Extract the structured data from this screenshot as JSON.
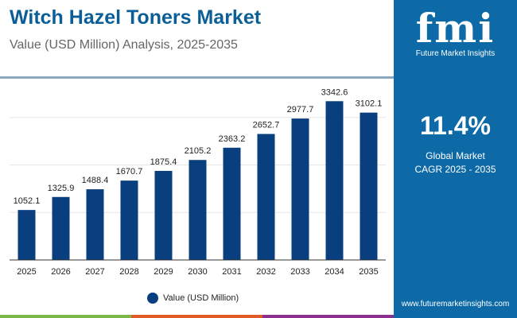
{
  "header": {
    "title": "Witch Hazel Toners Market",
    "subtitle": "Value (USD Million) Analysis, 2025-2035"
  },
  "panel": {
    "logo_text": "fmi",
    "logo_caption": "Future Market Insights",
    "cagr_value": "11.4%",
    "cagr_label_1": "Global Market",
    "cagr_label_2": "CAGR 2025 - 2035",
    "website": "www.futuremarketinsights.com"
  },
  "colors": {
    "bar": "#0a3f7f",
    "panel": "#0e6aa6",
    "title": "#0b5f96",
    "strip": [
      "#7ab648",
      "#e05a26",
      "#8b2f8e"
    ]
  },
  "chart_data": {
    "type": "bar",
    "title": "Witch Hazel Toners Market",
    "categories": [
      "2025",
      "2026",
      "2027",
      "2028",
      "2029",
      "2030",
      "2031",
      "2032",
      "2033",
      "2034",
      "2035"
    ],
    "series": [
      {
        "name": "Value (USD Million)",
        "values": [
          1052.1,
          1325.9,
          1488.4,
          1670.7,
          1875.4,
          2105.2,
          2363.2,
          2652.7,
          2977.7,
          3342.6,
          3102.1
        ]
      }
    ],
    "value_labels": [
      "1052.1",
      "1325.9",
      "1488.4",
      "1670.7",
      "1875.4",
      "2105.2",
      "2363.2",
      "2652.7",
      "2977.7",
      "3342.6",
      "3102.1"
    ],
    "ylim": [
      0,
      4000
    ],
    "grid": true,
    "legend": "bottom"
  }
}
